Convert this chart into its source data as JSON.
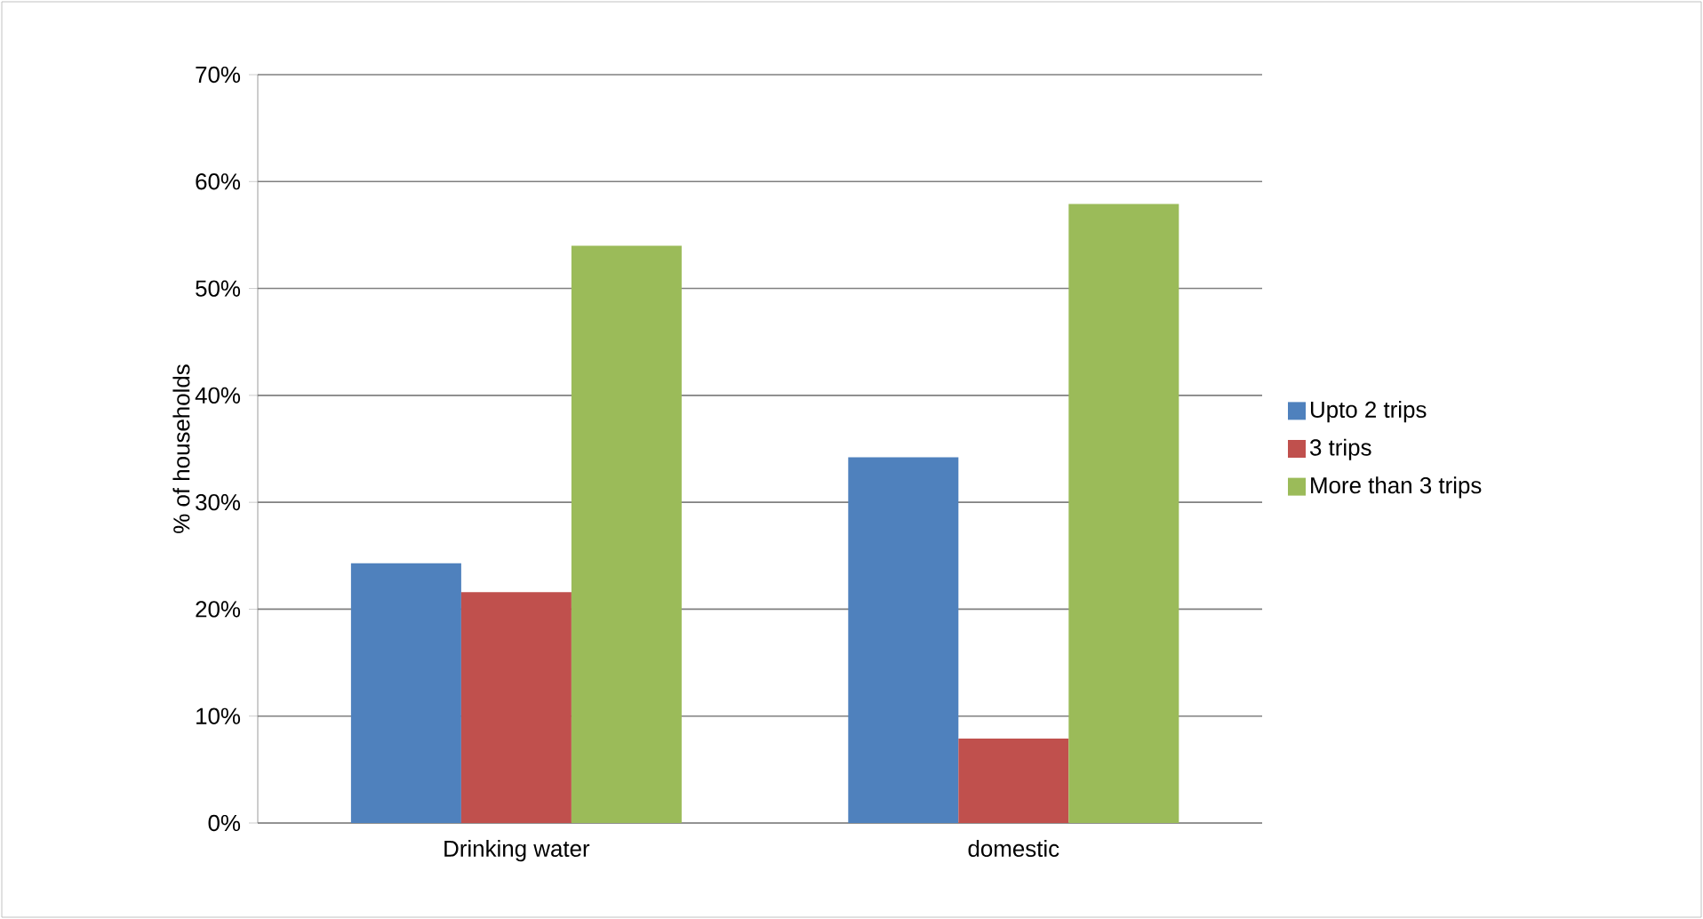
{
  "chart_data": {
    "type": "bar",
    "ylabel": "% of households",
    "categories": [
      "Drinking water",
      "domestic"
    ],
    "series": [
      {
        "name": "Upto 2 trips",
        "color": "#4f81bd",
        "values": [
          24.3,
          34.2
        ]
      },
      {
        "name": "3 trips",
        "color": "#c0504d",
        "values": [
          21.6,
          7.9
        ]
      },
      {
        "name": "More than 3 trips",
        "color": "#9bbb59",
        "values": [
          54.0,
          57.9
        ]
      }
    ],
    "ylim": [
      0,
      70
    ],
    "yticks": [
      {
        "value": 0,
        "label": "0%"
      },
      {
        "value": 10,
        "label": "10%"
      },
      {
        "value": 20,
        "label": "20%"
      },
      {
        "value": 30,
        "label": "30%"
      },
      {
        "value": 40,
        "label": "40%"
      },
      {
        "value": 50,
        "label": "50%"
      },
      {
        "value": 60,
        "label": "60%"
      },
      {
        "value": 70,
        "label": "70%"
      }
    ],
    "grid": "y",
    "legend": "right"
  }
}
